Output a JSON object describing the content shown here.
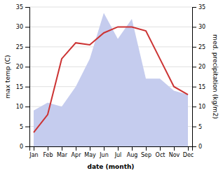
{
  "chart_data": {
    "type": "line",
    "xlabel": "date (month)",
    "ylabel": "max temp (C)",
    "y2label": "med. precipitation (kg/m2)",
    "categories": [
      "Jan",
      "Feb",
      "Mar",
      "Apr",
      "May",
      "Jun",
      "Jul",
      "Aug",
      "Sep",
      "Oct",
      "Nov",
      "Dec"
    ],
    "series": [
      {
        "type": "area",
        "axis": "y2",
        "color": "#c5ccee",
        "values": [
          9.0,
          11.0,
          10.0,
          15.0,
          22.0,
          33.5,
          27.0,
          32.0,
          17.0,
          17.0,
          14.0,
          13.0
        ]
      },
      {
        "type": "line",
        "color": "#cc3333",
        "values": [
          3.5,
          8.0,
          22.0,
          26.0,
          25.5,
          28.5,
          30.0,
          30.0,
          29.0,
          22.0,
          15.0,
          13.0
        ]
      }
    ],
    "ylim": [
      0,
      35
    ],
    "yticks": [
      0,
      5,
      10,
      15,
      20,
      25,
      30,
      35
    ],
    "y2lim": [
      0,
      35
    ],
    "y2ticks": [
      0,
      5,
      10,
      15,
      20,
      25,
      30,
      35
    ],
    "grid": true
  }
}
